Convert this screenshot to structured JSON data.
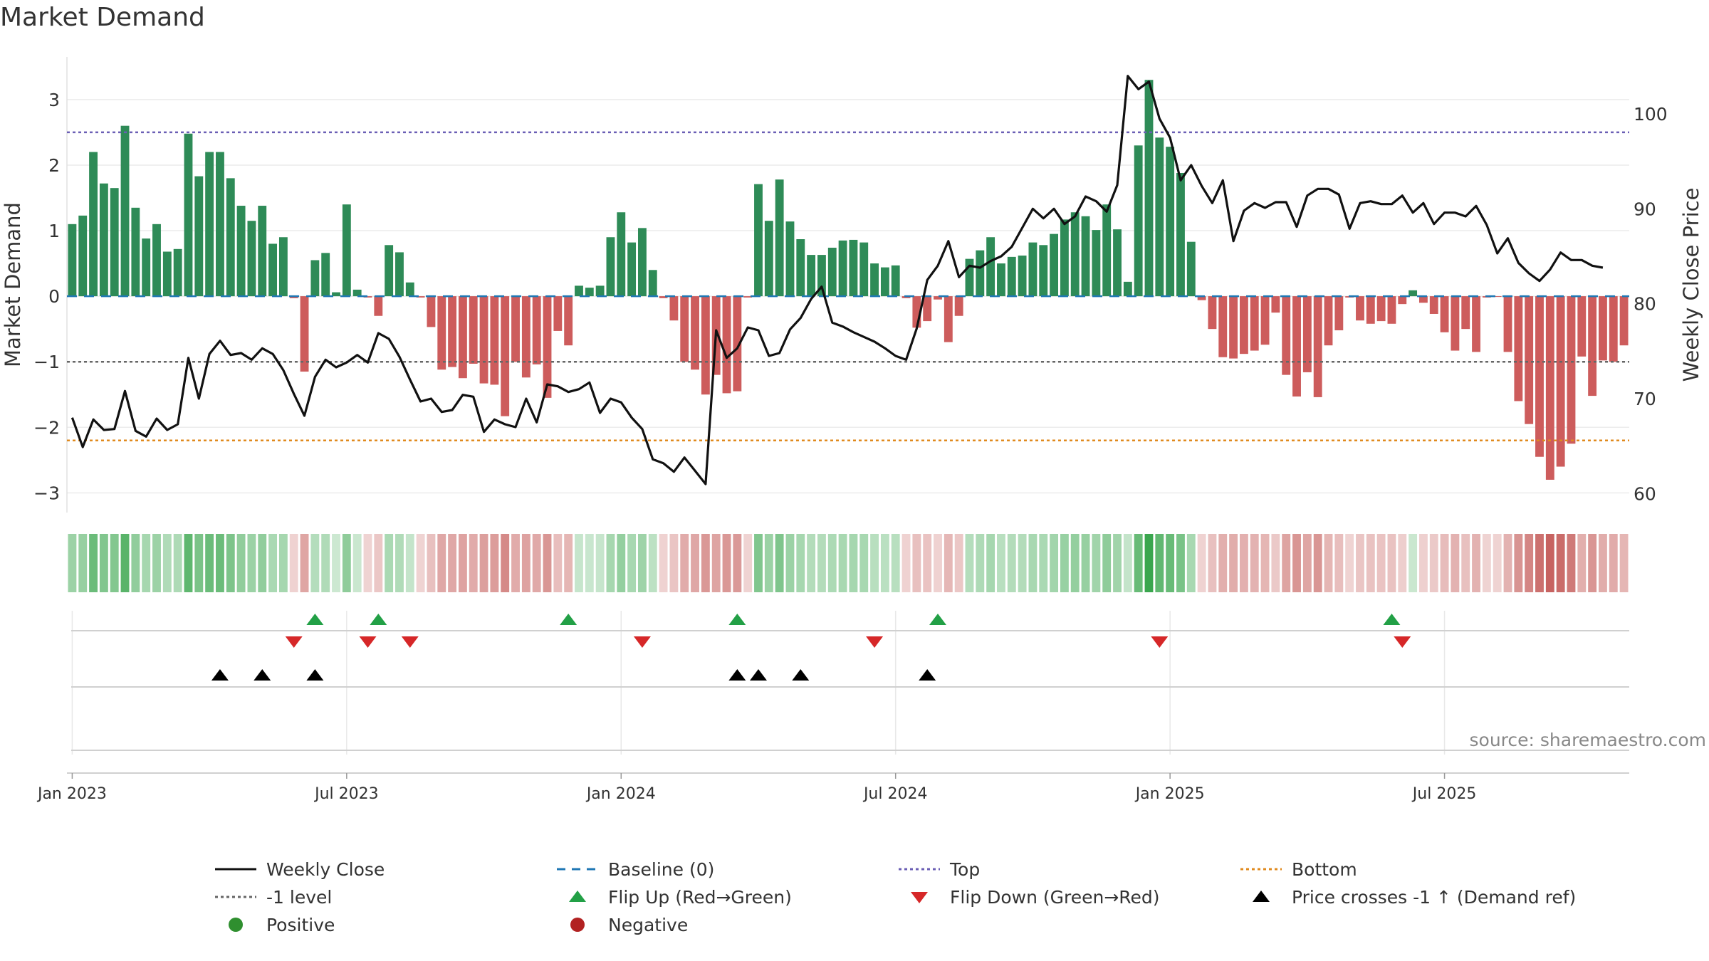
{
  "chart_data": {
    "type": "bar",
    "title": "Market Demand",
    "ylabel": "Market Demand",
    "y2label": "Weekly Close Price",
    "ylim": [
      -3.3,
      3.65
    ],
    "y2lim": [
      58,
      106
    ],
    "yticks": [
      3,
      2,
      1,
      0,
      -1,
      -2,
      -3
    ],
    "yticklabels": [
      "3",
      "2",
      "1",
      "0",
      "−1",
      "−2",
      "−3"
    ],
    "y2ticks": [
      100,
      90,
      80,
      70,
      60
    ],
    "y2ticklabels": [
      "100",
      "90",
      "80",
      "70",
      "60"
    ],
    "xticklabels": [
      "Jan 2023",
      "Jul 2023",
      "Jan 2024",
      "Jul 2024",
      "Jan 2025",
      "Jul 2025"
    ],
    "source": "source: sharemaestro.com",
    "reference_lines": {
      "baseline": 0,
      "minus_one": -1,
      "top": 2.5,
      "bottom": -2.2
    },
    "colors": {
      "positive": "#2e8b57",
      "negative": "#cd5c5c",
      "price": "#111111",
      "baseline": "#1f77b4",
      "top": "#6b5fb5",
      "bottom": "#e08a1e",
      "minus_one": "#666666",
      "flip_up": "#22a046",
      "flip_down": "#d62728",
      "cross": "#000000"
    },
    "series": [
      {
        "name": "Market Demand",
        "values": [
          1.1,
          1.23,
          2.2,
          1.72,
          1.65,
          2.6,
          1.35,
          0.88,
          1.1,
          0.68,
          0.72,
          2.48,
          1.83,
          2.2,
          2.2,
          1.8,
          1.38,
          1.15,
          1.38,
          0.8,
          0.9,
          -0.03,
          -1.15,
          0.55,
          0.66,
          0.06,
          1.4,
          0.1,
          -0.02,
          -0.3,
          0.78,
          0.67,
          0.21,
          -0.02,
          -0.47,
          -1.12,
          -1.08,
          -1.25,
          -1.03,
          -1.33,
          -1.35,
          -1.83,
          -1.0,
          -1.24,
          -1.04,
          -1.55,
          -0.53,
          -0.75,
          0.16,
          0.13,
          0.16,
          0.9,
          1.28,
          0.82,
          1.04,
          0.4,
          -0.03,
          -0.37,
          -1.0,
          -1.12,
          -1.5,
          -1.2,
          -1.48,
          -1.45,
          -0.02,
          1.71,
          1.15,
          1.78,
          1.14,
          0.87,
          0.63,
          0.63,
          0.74,
          0.85,
          0.86,
          0.82,
          0.5,
          0.44,
          0.47,
          -0.03,
          -0.48,
          -0.38,
          -0.05,
          -0.7,
          -0.3,
          0.57,
          0.7,
          0.9,
          0.5,
          0.6,
          0.62,
          0.82,
          0.78,
          0.95,
          1.17,
          1.28,
          1.22,
          1.01,
          1.4,
          1.02,
          0.22,
          2.3,
          3.3,
          2.42,
          2.28,
          1.88,
          0.83,
          -0.06,
          -0.5,
          -0.93,
          -0.95,
          -0.88,
          -0.83,
          -0.74,
          -0.25,
          -1.2,
          -1.53,
          -1.16,
          -1.54,
          -0.75,
          -0.52,
          -0.02,
          -0.37,
          -0.42,
          -0.38,
          -0.42,
          -0.12,
          0.09,
          -0.1,
          -0.27,
          -0.55,
          -0.83,
          -0.5,
          -0.85,
          -0.02,
          -0.01,
          -0.85,
          -1.6,
          -1.95,
          -2.45,
          -2.8,
          -2.6,
          -2.25,
          -0.92,
          -1.52,
          -0.98,
          -1.0,
          -0.75
        ]
      },
      {
        "name": "Weekly Close",
        "values": [
          68,
          64.9,
          67.8,
          66.7,
          66.8,
          70.8,
          66.6,
          66,
          67.9,
          66.7,
          67.3,
          74.3,
          70,
          74.7,
          76.1,
          74.6,
          74.8,
          74.1,
          75.3,
          74.7,
          73,
          70.5,
          68.2,
          72.3,
          74.1,
          73.3,
          73.8,
          74.6,
          73.8,
          76.9,
          76.3,
          74.4,
          72,
          69.7,
          70,
          68.6,
          68.8,
          70.4,
          70.2,
          66.5,
          67.8,
          67.3,
          67,
          70,
          67.5,
          71.5,
          71.3,
          70.7,
          71,
          71.7,
          68.5,
          70,
          69.6,
          68,
          66.8,
          63.6,
          63.2,
          62.3,
          63.8,
          62.4,
          61,
          77.2,
          74.3,
          75.3,
          77.5,
          77.2,
          74.5,
          74.8,
          77.3,
          78.5,
          80.5,
          81.8,
          78,
          77.6,
          77,
          76.5,
          76,
          75.3,
          74.5,
          74.1,
          77.4,
          82.5,
          84,
          86.6,
          82.8,
          84,
          83.8,
          84.5,
          85,
          86,
          88,
          90,
          89,
          90,
          88.4,
          89.2,
          91.3,
          90.8,
          89.7,
          92.5,
          104,
          102.6,
          103.4,
          99.5,
          97.5,
          93,
          94.6,
          92.4,
          90.6,
          93,
          86.6,
          89.8,
          90.6,
          90.1,
          90.7,
          90.7,
          88.1,
          91.4,
          92.1,
          92.1,
          91.5,
          87.9,
          90.6,
          90.8,
          90.5,
          90.5,
          91.4,
          89.6,
          90.6,
          88.4,
          89.6,
          89.6,
          89.2,
          90.3,
          88.3,
          85.3,
          86.9,
          84.3,
          83.2,
          82.4,
          83.6,
          85.4,
          84.6,
          84.6,
          84,
          83.8
        ]
      }
    ],
    "bar_labels": {
      "positive": "Positive",
      "negative": "Negative"
    },
    "flip_up_weeks": [
      23,
      29,
      47,
      63,
      82,
      125
    ],
    "flip_down_weeks": [
      21,
      28,
      32,
      54,
      76,
      103,
      126
    ],
    "price_cross_weeks": [
      14,
      18,
      23,
      63,
      65,
      69,
      81
    ],
    "legend": [
      {
        "symbol": "line-solid-black",
        "label": "Weekly Close"
      },
      {
        "symbol": "line-dashed-blue",
        "label": "Baseline (0)"
      },
      {
        "symbol": "line-dotted-purple",
        "label": "Top"
      },
      {
        "symbol": "line-dotted-orange",
        "label": "Bottom"
      },
      {
        "symbol": "line-dotted-gray",
        "label": "-1 level"
      },
      {
        "symbol": "triangle-up-green",
        "label": "Flip Up (Red→Green)"
      },
      {
        "symbol": "triangle-down-red",
        "label": "Flip Down (Green→Red)"
      },
      {
        "symbol": "triangle-up-black",
        "label": "Price crosses -1 ↑ (Demand ref)"
      },
      {
        "symbol": "circle-green",
        "label": "Positive"
      },
      {
        "symbol": "circle-red",
        "label": "Negative"
      }
    ]
  }
}
